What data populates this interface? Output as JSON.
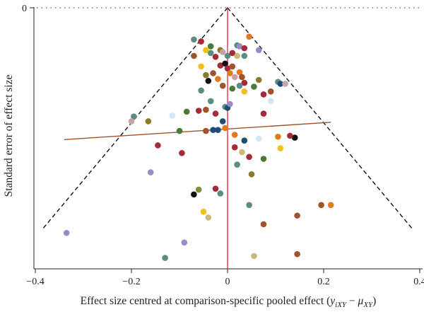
{
  "chart_data": {
    "type": "scatter",
    "xlabel_main": "Effect size centred at comparison-specific pooled effect (",
    "xlabel_math": "y",
    "xlabel_sub1": "iXY",
    "xlabel_minus": " − ",
    "xlabel_mu": "μ",
    "xlabel_sub2": "XY",
    "xlabel_close": ")",
    "ylabel": "Standard error of effect size",
    "xlim": [
      -0.4,
      0.4
    ],
    "ylim": [
      0.265,
      0
    ],
    "y_reversed": true,
    "x_ticks": [
      {
        "value": -0.4,
        "label": "−0.4"
      },
      {
        "value": -0.2,
        "label": "−0.2"
      },
      {
        "value": 0,
        "label": "0"
      },
      {
        "value": 0.2,
        "label": "0.2"
      },
      {
        "value": 0.4,
        "label": "0.4"
      }
    ],
    "y_ticks": [
      {
        "value": 0,
        "label": "0"
      }
    ],
    "grid": false,
    "reference_lines": {
      "zero_effect_line": {
        "x": 0,
        "color": "#ee3333"
      },
      "top_dotted_line": {
        "y": 0,
        "color": "#555555"
      },
      "funnel": {
        "apex": [
          0,
          0
        ],
        "left": [
          -0.385,
          0.23
        ],
        "right": [
          0.385,
          0.23
        ],
        "color": "#111111"
      },
      "regression_line": {
        "x1": -0.34,
        "y1": 0.137,
        "x2": 0.215,
        "y2": 0.119,
        "color": "#a0522d"
      }
    },
    "points": [
      {
        "x": -0.335,
        "y": 0.234,
        "color": "#9b8ac4"
      },
      {
        "x": -0.16,
        "y": 0.171,
        "color": "#9b8ac4"
      },
      {
        "x": -0.13,
        "y": 0.26,
        "color": "#5b8c85"
      },
      {
        "x": -0.09,
        "y": 0.244,
        "color": "#9b8ac4"
      },
      {
        "x": -0.095,
        "y": 0.151,
        "color": "#a52a3a"
      },
      {
        "x": -0.07,
        "y": 0.194,
        "color": "#111111"
      },
      {
        "x": -0.06,
        "y": 0.189,
        "color": "#7a8f3a"
      },
      {
        "x": -0.05,
        "y": 0.212,
        "color": "#f2c01c"
      },
      {
        "x": -0.04,
        "y": 0.218,
        "color": "#c8b87a"
      },
      {
        "x": -0.025,
        "y": 0.188,
        "color": "#a52a3a"
      },
      {
        "x": -0.015,
        "y": 0.193,
        "color": "#5b8c85"
      },
      {
        "x": -0.195,
        "y": 0.113,
        "color": "#5b8c85"
      },
      {
        "x": -0.2,
        "y": 0.118,
        "color": "#c4a4a4"
      },
      {
        "x": -0.165,
        "y": 0.118,
        "color": "#8a7a2a"
      },
      {
        "x": -0.145,
        "y": 0.143,
        "color": "#a52a3a"
      },
      {
        "x": -0.115,
        "y": 0.112,
        "color": "#d6e6f2"
      },
      {
        "x": -0.1,
        "y": 0.128,
        "color": "#4a7a3a"
      },
      {
        "x": -0.085,
        "y": 0.108,
        "color": "#4a7a3a"
      },
      {
        "x": -0.06,
        "y": 0.107,
        "color": "#a52a3a"
      },
      {
        "x": -0.045,
        "y": 0.128,
        "color": "#a0522d"
      },
      {
        "x": -0.03,
        "y": 0.127,
        "color": "#1d4e7a"
      },
      {
        "x": -0.02,
        "y": 0.127,
        "color": "#1d4e7a"
      },
      {
        "x": -0.005,
        "y": 0.125,
        "color": "#e07a1f"
      },
      {
        "x": -0.045,
        "y": 0.106,
        "color": "#a0522d"
      },
      {
        "x": -0.035,
        "y": 0.097,
        "color": "#5b8c85"
      },
      {
        "x": -0.025,
        "y": 0.11,
        "color": "#a52a3a"
      },
      {
        "x": -0.01,
        "y": 0.118,
        "color": "#1d4e7a"
      },
      {
        "x": -0.005,
        "y": 0.103,
        "color": "#5b8c85"
      },
      {
        "x": 0.0,
        "y": 0.104,
        "color": "#1d4e7a"
      },
      {
        "x": 0.005,
        "y": 0.1,
        "color": "#9b8ac4"
      },
      {
        "x": -0.055,
        "y": 0.086,
        "color": "#5b8c85"
      },
      {
        "x": -0.04,
        "y": 0.076,
        "color": "#111111"
      },
      {
        "x": -0.045,
        "y": 0.07,
        "color": "#8a7a2a"
      },
      {
        "x": -0.03,
        "y": 0.068,
        "color": "#a0522d"
      },
      {
        "x": -0.02,
        "y": 0.074,
        "color": "#e07a1f"
      },
      {
        "x": -0.01,
        "y": 0.081,
        "color": "#a0522d"
      },
      {
        "x": -0.015,
        "y": 0.06,
        "color": "#a52a3a"
      },
      {
        "x": -0.005,
        "y": 0.058,
        "color": "#111111"
      },
      {
        "x": 0.0,
        "y": 0.063,
        "color": "#a52a3a"
      },
      {
        "x": 0.01,
        "y": 0.061,
        "color": "#a0522d"
      },
      {
        "x": 0.005,
        "y": 0.068,
        "color": "#e07a1f"
      },
      {
        "x": 0.015,
        "y": 0.072,
        "color": "#c4a4a4"
      },
      {
        "x": 0.025,
        "y": 0.067,
        "color": "#e07a1f"
      },
      {
        "x": 0.03,
        "y": 0.072,
        "color": "#a0522d"
      },
      {
        "x": 0.035,
        "y": 0.078,
        "color": "#a52a3a"
      },
      {
        "x": 0.025,
        "y": 0.081,
        "color": "#5b8c85"
      },
      {
        "x": 0.01,
        "y": 0.084,
        "color": "#4a7a3a"
      },
      {
        "x": -0.07,
        "y": 0.05,
        "color": "#a0522d"
      },
      {
        "x": -0.055,
        "y": 0.061,
        "color": "#f2c01c"
      },
      {
        "x": -0.035,
        "y": 0.047,
        "color": "#5b8c85"
      },
      {
        "x": -0.015,
        "y": 0.044,
        "color": "#8a7a2a"
      },
      {
        "x": 0.0,
        "y": 0.05,
        "color": "#5b8c85"
      },
      {
        "x": 0.01,
        "y": 0.047,
        "color": "#a52a3a"
      },
      {
        "x": 0.02,
        "y": 0.05,
        "color": "#c8b87a"
      },
      {
        "x": 0.035,
        "y": 0.05,
        "color": "#5b8c85"
      },
      {
        "x": -0.025,
        "y": 0.051,
        "color": "#a52a3a"
      },
      {
        "x": -0.01,
        "y": 0.046,
        "color": "#c4a4a4"
      },
      {
        "x": 0.02,
        "y": 0.039,
        "color": "#5b8c85"
      },
      {
        "x": 0.025,
        "y": 0.04,
        "color": "#9b8ac4"
      },
      {
        "x": 0.035,
        "y": 0.042,
        "color": "#a52a3a"
      },
      {
        "x": 0.045,
        "y": 0.03,
        "color": "#e07a1f"
      },
      {
        "x": -0.07,
        "y": 0.033,
        "color": "#5b8c85"
      },
      {
        "x": -0.055,
        "y": 0.035,
        "color": "#a52a3a"
      },
      {
        "x": -0.035,
        "y": 0.04,
        "color": "#4a7a3a"
      },
      {
        "x": -0.045,
        "y": 0.044,
        "color": "#f2c01c"
      },
      {
        "x": 0.065,
        "y": 0.044,
        "color": "#9b8ac4"
      },
      {
        "x": 0.035,
        "y": 0.087,
        "color": "#f2c01c"
      },
      {
        "x": 0.055,
        "y": 0.082,
        "color": "#4a7a3a"
      },
      {
        "x": 0.065,
        "y": 0.075,
        "color": "#8a7a2a"
      },
      {
        "x": 0.075,
        "y": 0.09,
        "color": "#a52a3a"
      },
      {
        "x": 0.09,
        "y": 0.087,
        "color": "#a0522d"
      },
      {
        "x": 0.105,
        "y": 0.077,
        "color": "#5b8c85"
      },
      {
        "x": 0.11,
        "y": 0.079,
        "color": "#1d4e7a"
      },
      {
        "x": 0.12,
        "y": 0.079,
        "color": "#c4a4a4"
      },
      {
        "x": 0.09,
        "y": 0.097,
        "color": "#d6e6f2"
      },
      {
        "x": 0.075,
        "y": 0.11,
        "color": "#a52a3a"
      },
      {
        "x": 0.075,
        "y": 0.157,
        "color": "#4a7a3a"
      },
      {
        "x": 0.065,
        "y": 0.136,
        "color": "#d6e6f2"
      },
      {
        "x": 0.11,
        "y": 0.146,
        "color": "#f2c01c"
      },
      {
        "x": 0.105,
        "y": 0.134,
        "color": "#e07a1f"
      },
      {
        "x": 0.14,
        "y": 0.135,
        "color": "#111111"
      },
      {
        "x": 0.13,
        "y": 0.133,
        "color": "#a52a3a"
      },
      {
        "x": 0.195,
        "y": 0.205,
        "color": "#a0522d"
      },
      {
        "x": 0.145,
        "y": 0.256,
        "color": "#a0522d"
      },
      {
        "x": 0.055,
        "y": 0.258,
        "color": "#c8b87a"
      },
      {
        "x": 0.015,
        "y": 0.132,
        "color": "#e07a1f"
      },
      {
        "x": 0.035,
        "y": 0.138,
        "color": "#1d4e7a"
      },
      {
        "x": 0.015,
        "y": 0.145,
        "color": "#a52a3a"
      },
      {
        "x": 0.03,
        "y": 0.15,
        "color": "#c8b87a"
      },
      {
        "x": 0.045,
        "y": 0.155,
        "color": "#a52a3a"
      },
      {
        "x": 0.05,
        "y": 0.173,
        "color": "#8a7a2a"
      },
      {
        "x": 0.02,
        "y": 0.163,
        "color": "#5b8c85"
      },
      {
        "x": 0.045,
        "y": 0.205,
        "color": "#5b8c85"
      },
      {
        "x": 0.075,
        "y": 0.225,
        "color": "#a0522d"
      },
      {
        "x": 0.145,
        "y": 0.216,
        "color": "#a0522d"
      },
      {
        "x": 0.215,
        "y": 0.205,
        "color": "#e07a1f"
      }
    ]
  }
}
